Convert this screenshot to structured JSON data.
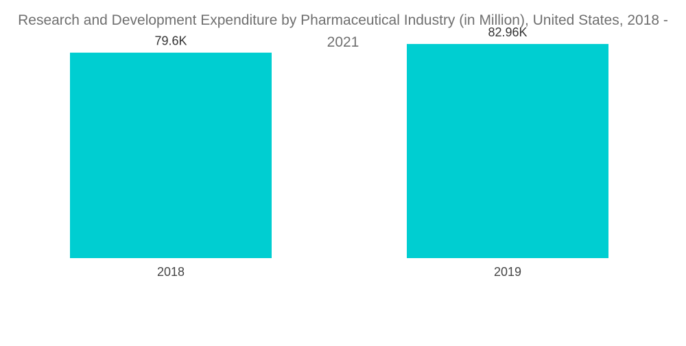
{
  "chart_data": {
    "type": "bar",
    "title": "Research and Development Expenditure by Pharmaceutical Industry (in Million), United States, 2018 - 2021",
    "categories": [
      "2018",
      "2019"
    ],
    "values": [
      79600,
      82960
    ],
    "data_labels": [
      "79.6K",
      "82.96K"
    ],
    "xlabel": "",
    "ylabel": "",
    "ylim": [
      0,
      100000
    ],
    "grid": false,
    "legend": "none",
    "bar_color": "#00CED1"
  }
}
